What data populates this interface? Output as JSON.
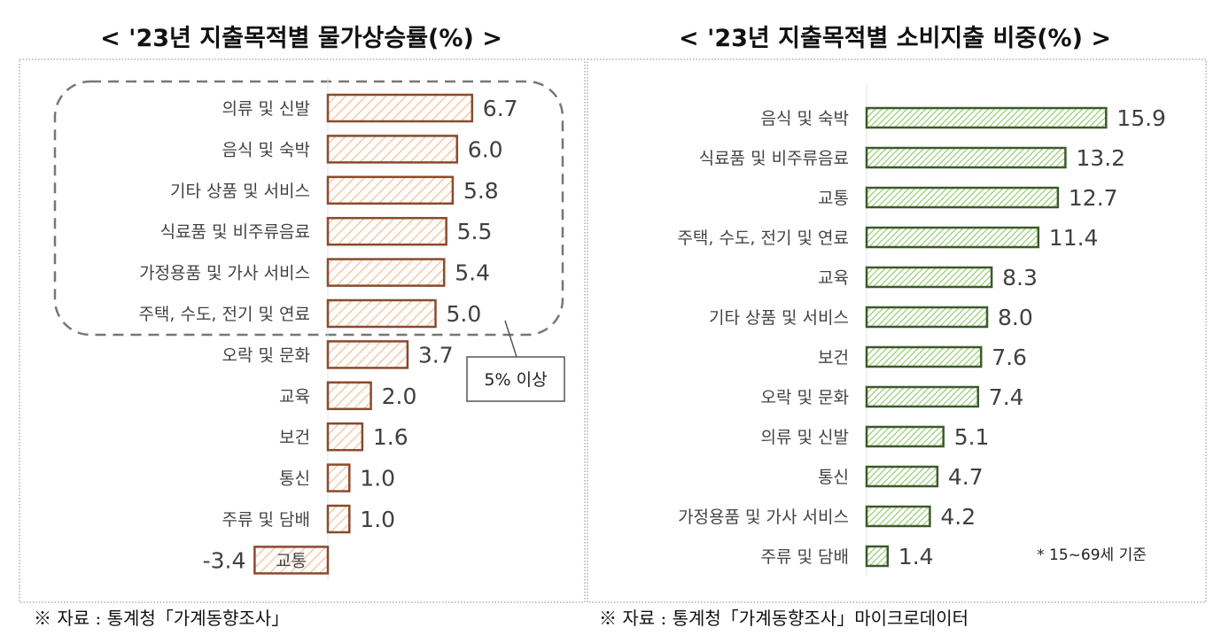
{
  "chart_data": [
    {
      "type": "bar",
      "orientation": "horizontal",
      "title": "< '23년 지출목적별 물가상승률(%) >",
      "categories": [
        "의류 및 신발",
        "음식 및 숙박",
        "기타 상품 및 서비스",
        "식료품 및 비주류음료",
        "가정용품 및 가사 서비스",
        "주택, 수도, 전기 및 연료",
        "오락 및 문화",
        "교육",
        "보건",
        "통신",
        "주류 및 담배",
        "교통"
      ],
      "values": [
        6.7,
        6.0,
        5.8,
        5.5,
        5.4,
        5.0,
        3.7,
        2.0,
        1.6,
        1.0,
        1.0,
        -3.4
      ],
      "value_labels": [
        "6.7",
        "6.0",
        "5.8",
        "5.5",
        "5.4",
        "5.0",
        "3.7",
        "2.0",
        "1.6",
        "1.0",
        "1.0",
        "-3.4"
      ],
      "annotation": "5% 이상",
      "bar_color": "#8B4A2B",
      "fill_color": "#F6C9A8",
      "grid": false,
      "source": "※ 자료 : 통계청「가계동향조사」"
    },
    {
      "type": "bar",
      "orientation": "horizontal",
      "title": "< '23년 지출목적별 소비지출 비중(%) >",
      "categories": [
        "음식 및 숙박",
        "식료품 및 비주류음료",
        "교통",
        "주택, 수도, 전기 및 연료",
        "교육",
        "기타 상품 및 서비스",
        "보건",
        "오락 및 문화",
        "의류 및 신발",
        "통신",
        "가정용품 및 가사 서비스",
        "주류 및 담배"
      ],
      "values": [
        15.9,
        13.2,
        12.7,
        11.4,
        8.3,
        8.0,
        7.6,
        7.4,
        5.1,
        4.7,
        4.2,
        1.4
      ],
      "value_labels": [
        "15.9",
        "13.2",
        "12.7",
        "11.4",
        "8.3",
        "8.0",
        "7.6",
        "7.4",
        "5.1",
        "4.7",
        "4.2",
        "1.4"
      ],
      "annotation": "* 15~69세 기준",
      "bar_color": "#3C5A2A",
      "fill_color": "#BFE0A6",
      "grid": false,
      "source": "※ 자료 : 통계청「가계동향조사」마이크로데이터"
    }
  ]
}
